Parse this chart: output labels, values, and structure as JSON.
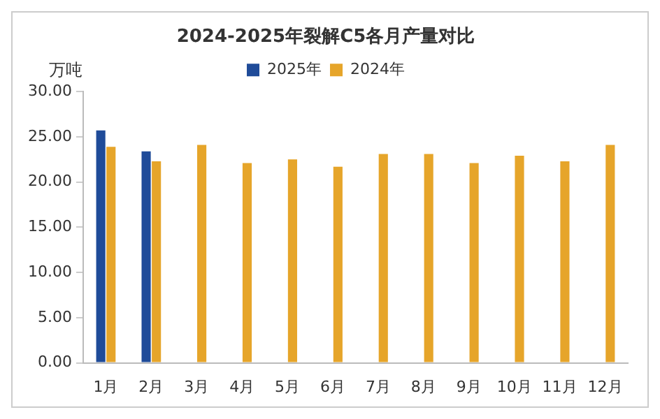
{
  "chart_data": {
    "type": "bar",
    "title": "2024-2025年裂解C5各月产量对比",
    "ylabel": "万吨",
    "categories": [
      "1月",
      "2月",
      "3月",
      "4月",
      "5月",
      "6月",
      "7月",
      "8月",
      "9月",
      "10月",
      "11月",
      "12月"
    ],
    "series": [
      {
        "name": "2025年",
        "color": "#1f4b99",
        "values": [
          25.7,
          23.4,
          null,
          null,
          null,
          null,
          null,
          null,
          null,
          null,
          null,
          null
        ]
      },
      {
        "name": "2024年",
        "color": "#e6a52a",
        "values": [
          23.9,
          22.3,
          24.1,
          22.1,
          22.5,
          21.7,
          23.1,
          23.1,
          22.1,
          22.9,
          22.3,
          24.1
        ]
      }
    ],
    "ylim": [
      0,
      30
    ],
    "yticks": [
      {
        "value": 0,
        "label": "0.00"
      },
      {
        "value": 5,
        "label": "5.00"
      },
      {
        "value": 10,
        "label": "10.00"
      },
      {
        "value": 15,
        "label": "15.00"
      },
      {
        "value": 20,
        "label": "20.00"
      },
      {
        "value": 25,
        "label": "25.00"
      },
      {
        "value": 30,
        "label": "30.00"
      }
    ],
    "grid": false,
    "legend": "top"
  }
}
